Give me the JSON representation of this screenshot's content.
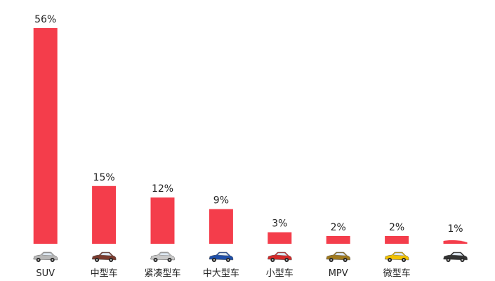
{
  "chart_data": {
    "type": "bar",
    "title": "",
    "xlabel": "",
    "ylabel": "",
    "ylim": [
      0,
      56
    ],
    "grid": false,
    "legend": "none",
    "bar_color": "#f43d4b",
    "categories": [
      "SUV",
      "中型车",
      "紧凑型车",
      "中大型车",
      "小型车",
      "MPV",
      "微型车",
      ""
    ],
    "values": [
      56,
      15,
      12,
      9,
      3,
      2,
      2,
      1
    ],
    "value_labels": [
      "56%",
      "15%",
      "12%",
      "9%",
      "3%",
      "2%",
      "2%",
      "1%"
    ],
    "category_icons": [
      {
        "name": "suv-car-icon",
        "color": "#b8b8b8"
      },
      {
        "name": "sedan-car-icon",
        "color": "#7a3b2e"
      },
      {
        "name": "compact-car-icon",
        "color": "#c9c9c9"
      },
      {
        "name": "large-sedan-car-icon",
        "color": "#1f4fa8"
      },
      {
        "name": "small-car-icon",
        "color": "#d42a2a"
      },
      {
        "name": "mpv-car-icon",
        "color": "#a07a1e"
      },
      {
        "name": "micro-car-icon",
        "color": "#f2c200"
      },
      {
        "name": "other-car-icon",
        "color": "#333333"
      }
    ]
  }
}
